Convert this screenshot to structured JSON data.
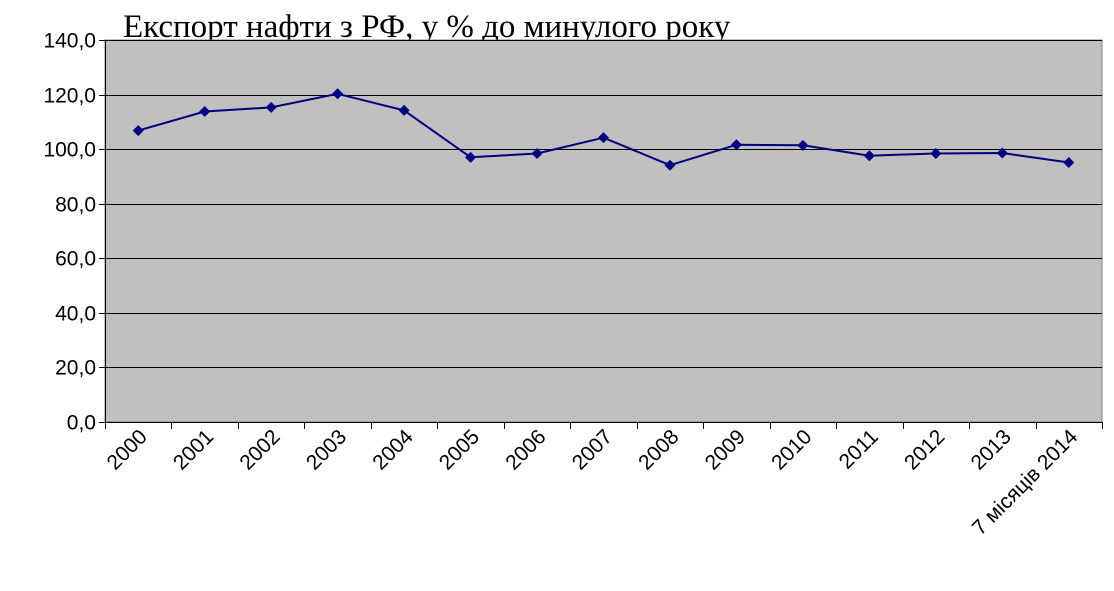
{
  "chart_data": {
    "type": "line",
    "title": "Експорт нафти з РФ, у % до минулого року",
    "xlabel": "",
    "ylabel": "",
    "categories": [
      "2000",
      "2001",
      "2002",
      "2003",
      "2004",
      "2005",
      "2006",
      "2007",
      "2008",
      "2009",
      "2010",
      "2011",
      "2012",
      "2013",
      "7 місяців 2014"
    ],
    "series": [
      {
        "values": [
          106.8,
          113.8,
          115.3,
          120.3,
          114.2,
          97.0,
          98.4,
          104.2,
          94.1,
          101.6,
          101.4,
          97.6,
          98.4,
          98.6,
          95.1
        ]
      }
    ],
    "ylim": [
      0,
      140
    ],
    "yticks": [
      "0,0",
      "20,0",
      "40,0",
      "60,0",
      "80,0",
      "100,0",
      "120,0",
      "140,0"
    ],
    "grid": "horizontal",
    "legend": "none",
    "colors": {
      "plot_background": "#c0c0c0",
      "line": "#000080",
      "gridline": "#000000"
    }
  }
}
